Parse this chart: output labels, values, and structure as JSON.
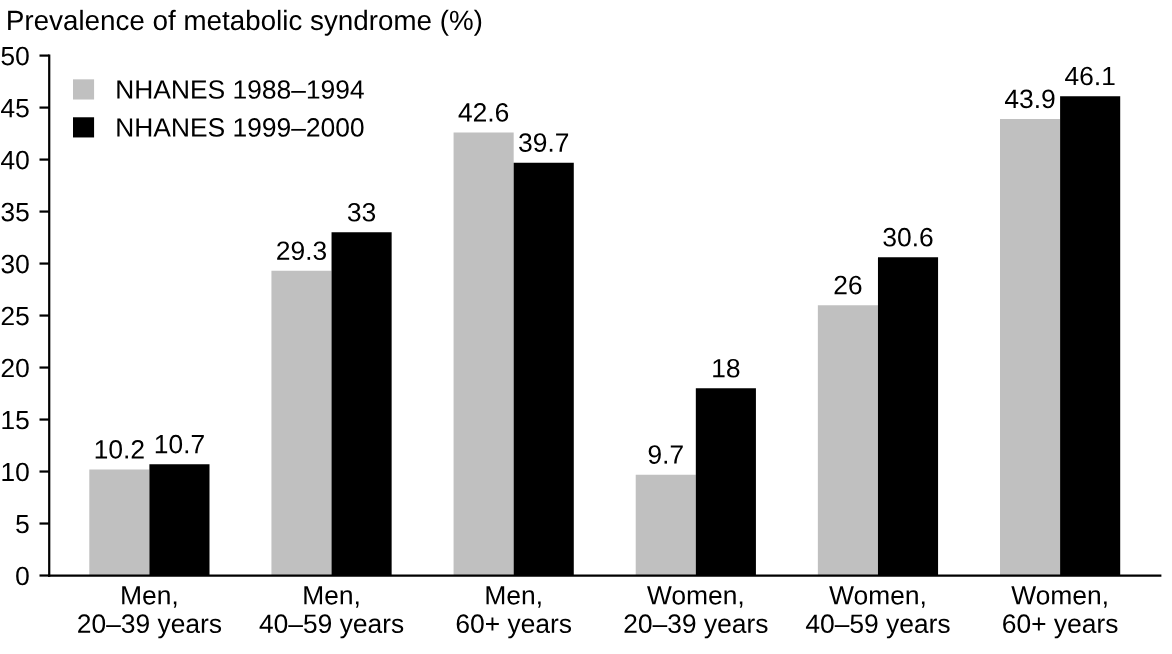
{
  "chart_data": {
    "type": "bar",
    "ylabel": "Prevalence of metabolic syndrome (%)",
    "categories": [
      "Men,\n20–39 years",
      "Men,\n40–59 years",
      "Men,\n60+ years",
      "Women,\n20–39 years",
      "Women,\n40–59 years",
      "Women,\n60+ years"
    ],
    "series": [
      {
        "name": "NHANES 1988–1994",
        "color": "#c0c0c0",
        "values": [
          10.2,
          29.3,
          42.6,
          9.7,
          26,
          43.9
        ]
      },
      {
        "name": "NHANES 1999–2000",
        "color": "#000000",
        "values": [
          10.7,
          33,
          39.7,
          18,
          30.6,
          46.1
        ]
      }
    ],
    "ylim": [
      0,
      50
    ],
    "yticks": [
      0,
      5,
      10,
      15,
      20,
      25,
      30,
      35,
      40,
      45,
      50
    ],
    "data_labels": true,
    "legend": "top left",
    "grid": false
  }
}
